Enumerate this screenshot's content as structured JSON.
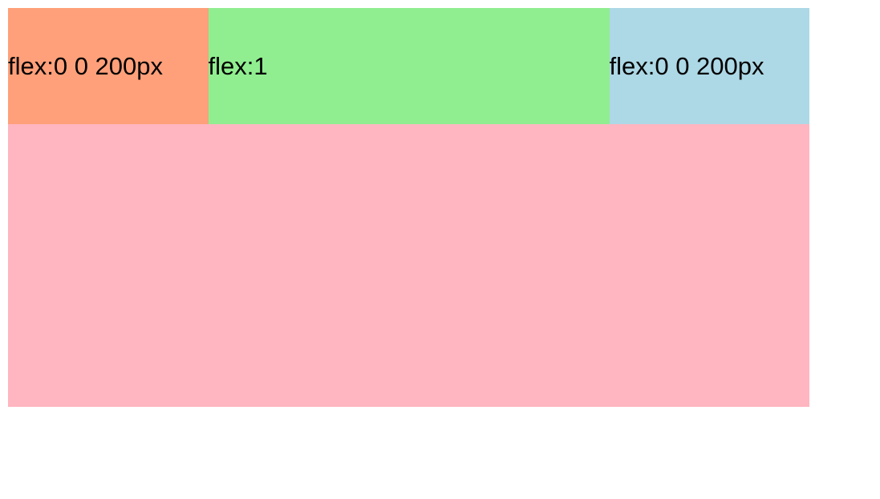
{
  "page": {
    "background": "#FFFFFF",
    "text_color": "#000000"
  },
  "flex_row": {
    "items": [
      {
        "label": "flex:0 0 200px",
        "background": "#FFA07A"
      },
      {
        "label": "flex:1",
        "background": "#90EE90"
      },
      {
        "label": "flex:0 0 200px",
        "background": "#ADD8E6"
      }
    ]
  },
  "bottom_block": {
    "background": "#FFB6C1"
  }
}
